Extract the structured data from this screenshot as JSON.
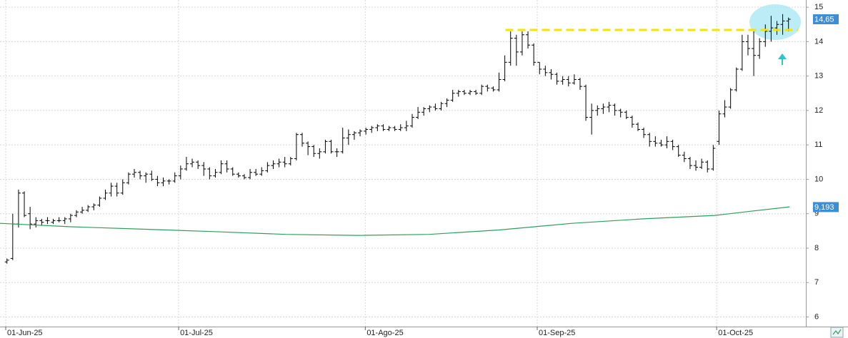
{
  "chart_data": {
    "type": "ohlc",
    "x": [
      0,
      1,
      2,
      3,
      4,
      5,
      6,
      7,
      8,
      9,
      10,
      11,
      12,
      13,
      14,
      15,
      16,
      17,
      18,
      19,
      20,
      21,
      22,
      23,
      24,
      25,
      26,
      27,
      28,
      29,
      30,
      31,
      32,
      33,
      34,
      35,
      36,
      37,
      38,
      39,
      40,
      41,
      42,
      43,
      44,
      45,
      46,
      47,
      48,
      49,
      50,
      51,
      52,
      53,
      54,
      55,
      56,
      57,
      58,
      59,
      60,
      61,
      62,
      63,
      64,
      65,
      66,
      67,
      68,
      69,
      70,
      71,
      72,
      73,
      74,
      75,
      76,
      77,
      78,
      79,
      80,
      81,
      82,
      83,
      84,
      85,
      86,
      87,
      88,
      89,
      90,
      91,
      92,
      93,
      94,
      95,
      96,
      97,
      98,
      99,
      100,
      101,
      102,
      103,
      104,
      105,
      106,
      107,
      108,
      109,
      110,
      111,
      112,
      113,
      114,
      115,
      116,
      117,
      118,
      119,
      120,
      121,
      122,
      123,
      124,
      125,
      126,
      127,
      128,
      129,
      130,
      131,
      132,
      133,
      134,
      135
    ],
    "open": [
      7.6,
      7.7,
      8.7,
      9.6,
      9.0,
      8.7,
      8.8,
      8.8,
      8.75,
      8.8,
      8.8,
      8.85,
      8.95,
      9.05,
      9.1,
      9.2,
      9.25,
      9.45,
      9.6,
      9.8,
      9.6,
      9.9,
      10.15,
      10.2,
      10.1,
      10.15,
      10.0,
      9.9,
      9.95,
      9.95,
      10.1,
      10.3,
      10.45,
      10.5,
      10.4,
      10.3,
      10.1,
      10.2,
      10.45,
      10.3,
      10.15,
      10.1,
      10.05,
      10.2,
      10.15,
      10.25,
      10.4,
      10.45,
      10.5,
      10.45,
      10.6,
      11.3,
      11.05,
      10.95,
      10.75,
      10.8,
      11.1,
      10.8,
      10.8,
      11.2,
      11.3,
      11.35,
      11.4,
      11.45,
      11.5,
      11.55,
      11.45,
      11.5,
      11.45,
      11.5,
      11.55,
      11.8,
      11.95,
      12.05,
      12.1,
      12.05,
      12.2,
      12.3,
      12.5,
      12.55,
      12.5,
      12.55,
      12.5,
      12.7,
      12.65,
      12.6,
      12.9,
      13.4,
      14.1,
      13.7,
      14.2,
      13.9,
      13.4,
      13.2,
      13.1,
      13.05,
      12.85,
      12.9,
      12.8,
      12.9,
      12.7,
      11.8,
      12.0,
      12.05,
      12.1,
      12.15,
      12.0,
      11.95,
      11.8,
      11.6,
      11.45,
      11.3,
      11.1,
      11.05,
      11.0,
      11.1,
      10.95,
      10.7,
      10.6,
      10.4,
      10.35,
      10.5,
      10.3,
      11.1,
      11.9,
      12.1,
      12.6,
      13.2,
      14.0,
      13.8,
      13.6,
      14.0,
      14.3,
      14.4,
      14.5,
      14.6
    ],
    "high": [
      7.7,
      9.0,
      9.7,
      9.65,
      9.2,
      8.9,
      8.85,
      8.9,
      8.85,
      8.9,
      8.9,
      9.0,
      9.1,
      9.2,
      9.25,
      9.3,
      9.5,
      9.7,
      9.9,
      9.9,
      10.0,
      10.2,
      10.3,
      10.25,
      10.2,
      10.25,
      10.1,
      10.05,
      10.0,
      10.2,
      10.4,
      10.65,
      10.6,
      10.55,
      10.5,
      10.35,
      10.3,
      10.55,
      10.55,
      10.35,
      10.2,
      10.15,
      10.3,
      10.3,
      10.35,
      10.5,
      10.55,
      10.6,
      10.65,
      10.65,
      11.35,
      11.35,
      11.1,
      11.0,
      10.9,
      11.15,
      11.15,
      10.9,
      11.5,
      11.45,
      11.4,
      11.45,
      11.5,
      11.55,
      11.6,
      11.6,
      11.55,
      11.55,
      11.6,
      11.7,
      11.9,
      12.1,
      12.1,
      12.15,
      12.2,
      12.25,
      12.35,
      12.6,
      12.6,
      12.6,
      12.6,
      12.6,
      12.75,
      12.75,
      12.7,
      13.1,
      13.6,
      14.3,
      14.2,
      14.3,
      14.3,
      13.95,
      13.4,
      13.3,
      13.2,
      13.1,
      13.0,
      13.0,
      13.05,
      12.95,
      12.75,
      12.2,
      12.15,
      12.2,
      12.25,
      12.2,
      12.05,
      12.0,
      11.85,
      11.65,
      11.5,
      11.35,
      11.25,
      11.15,
      11.25,
      11.15,
      11.0,
      10.8,
      10.65,
      10.55,
      10.6,
      10.55,
      11.0,
      12.0,
      12.3,
      12.65,
      13.25,
      14.2,
      14.2,
      14.3,
      14.1,
      14.5,
      14.75,
      14.6,
      14.8,
      14.7
    ],
    "low": [
      7.55,
      7.65,
      8.6,
      8.9,
      8.55,
      8.6,
      8.65,
      8.7,
      8.7,
      8.75,
      8.7,
      8.75,
      8.9,
      9.0,
      9.05,
      9.1,
      9.2,
      9.4,
      9.5,
      9.5,
      9.55,
      9.85,
      10.05,
      10.0,
      9.9,
      9.95,
      9.8,
      9.8,
      9.85,
      9.9,
      10.0,
      10.25,
      10.35,
      10.3,
      10.1,
      10.0,
      10.05,
      10.15,
      10.2,
      10.1,
      10.05,
      10.0,
      10.0,
      10.1,
      10.1,
      10.2,
      10.3,
      10.35,
      10.35,
      10.4,
      10.55,
      10.95,
      10.7,
      10.65,
      10.6,
      10.75,
      10.75,
      10.65,
      10.75,
      11.0,
      11.15,
      11.25,
      11.3,
      11.35,
      11.4,
      11.4,
      11.4,
      11.4,
      11.4,
      11.4,
      11.5,
      11.75,
      11.85,
      11.95,
      12.0,
      12.0,
      12.1,
      12.25,
      12.4,
      12.45,
      12.45,
      12.45,
      12.45,
      12.55,
      12.55,
      12.55,
      12.85,
      13.3,
      13.3,
      13.6,
      13.8,
      13.3,
      13.05,
      13.0,
      12.9,
      12.75,
      12.75,
      12.7,
      12.75,
      12.6,
      11.7,
      11.3,
      11.85,
      11.9,
      11.95,
      11.85,
      11.8,
      11.75,
      11.5,
      11.4,
      11.2,
      10.95,
      10.95,
      10.95,
      10.9,
      10.85,
      10.65,
      10.5,
      10.3,
      10.25,
      10.3,
      10.2,
      10.25,
      11.0,
      11.8,
      12.05,
      12.55,
      13.15,
      13.6,
      13.0,
      13.5,
      13.85,
      14.0,
      14.2,
      14.2,
      14.3
    ],
    "close": [
      7.65,
      8.7,
      9.6,
      8.95,
      8.7,
      8.8,
      8.75,
      8.8,
      8.8,
      8.8,
      8.85,
      8.95,
      9.05,
      9.1,
      9.2,
      9.25,
      9.45,
      9.6,
      9.8,
      9.6,
      9.9,
      10.15,
      10.2,
      10.1,
      10.15,
      10.0,
      9.9,
      9.95,
      9.95,
      10.1,
      10.3,
      10.45,
      10.5,
      10.4,
      10.3,
      10.1,
      10.2,
      10.45,
      10.3,
      10.15,
      10.1,
      10.05,
      10.2,
      10.15,
      10.25,
      10.4,
      10.45,
      10.5,
      10.45,
      10.6,
      11.3,
      11.05,
      10.95,
      10.75,
      10.8,
      11.1,
      10.8,
      10.8,
      11.2,
      11.3,
      11.35,
      11.4,
      11.45,
      11.5,
      11.55,
      11.45,
      11.5,
      11.45,
      11.5,
      11.55,
      11.8,
      11.95,
      12.05,
      12.1,
      12.05,
      12.2,
      12.3,
      12.5,
      12.55,
      12.5,
      12.55,
      12.5,
      12.7,
      12.65,
      12.6,
      12.9,
      13.4,
      14.1,
      13.7,
      14.2,
      13.9,
      13.4,
      13.2,
      13.1,
      13.05,
      12.85,
      12.9,
      12.8,
      12.9,
      12.7,
      11.8,
      12.0,
      12.05,
      12.1,
      12.15,
      12.0,
      11.95,
      11.8,
      11.6,
      11.45,
      11.3,
      11.1,
      11.05,
      11.0,
      11.1,
      10.95,
      10.7,
      10.6,
      10.4,
      10.35,
      10.5,
      10.3,
      10.9,
      11.9,
      12.1,
      12.6,
      13.2,
      14.0,
      13.8,
      13.6,
      14.0,
      14.3,
      14.4,
      14.5,
      14.6,
      14.65
    ],
    "color": "#000000",
    "xlim": [
      -1.2,
      138
    ],
    "xticks": [
      {
        "value": -0.21,
        "label": "01-Jun-25"
      },
      {
        "value": 29.66,
        "label": "01-Jul-25"
      },
      {
        "value": 61.9,
        "label": "01-Ago-25"
      },
      {
        "value": 91.6,
        "label": "01-Sep-25"
      },
      {
        "value": 122.6,
        "label": "01-Oct-25"
      }
    ],
    "ylim": [
      5.72,
      15.21
    ],
    "yticks": [
      6,
      7,
      8,
      9,
      10,
      11,
      12,
      13,
      14,
      15
    ],
    "grid": true,
    "moving_average": {
      "color": "#2e9e5b",
      "x": [
        -1.2,
        11.1,
        23.5,
        35.8,
        48.2,
        60.5,
        72.9,
        85.2,
        97.6,
        109.9,
        122.3,
        128.4,
        135.2
      ],
      "values": [
        8.72,
        8.62,
        8.55,
        8.48,
        8.4,
        8.37,
        8.4,
        8.53,
        8.72,
        8.85,
        8.95,
        9.07,
        9.2
      ]
    },
    "resistance": {
      "value": 14.34,
      "x": [
        86.1,
        136.7
      ],
      "color": "#f5e400"
    },
    "price_labels": [
      {
        "value": 14.65,
        "label": "14,65",
        "color": "#3d8ed6"
      },
      {
        "value": 9.193,
        "label": "9,193",
        "color": "#3d8ed6"
      }
    ]
  }
}
